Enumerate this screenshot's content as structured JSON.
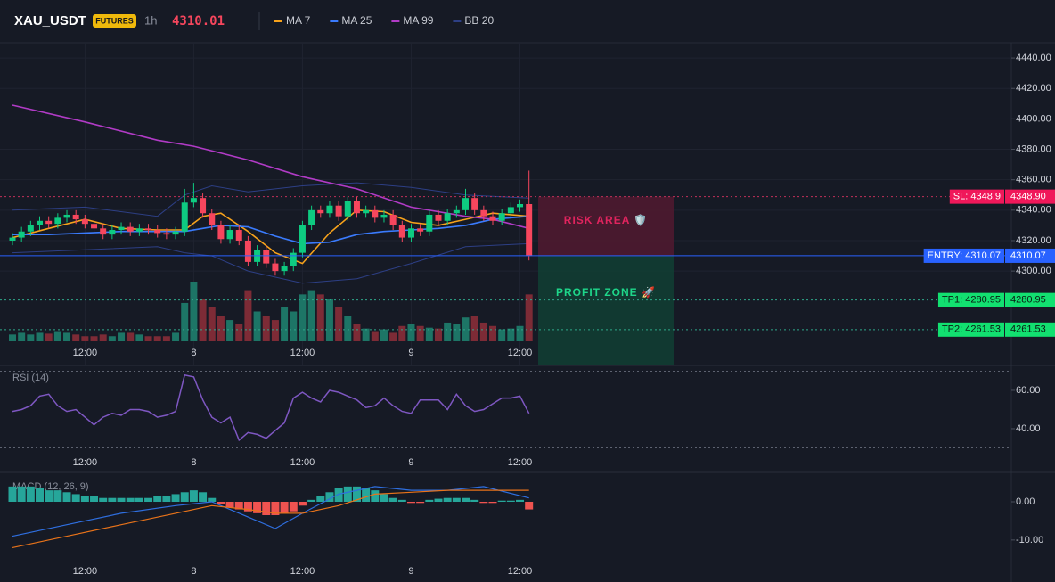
{
  "header": {
    "symbol": "XAU_USDT",
    "badge": "FUTURES",
    "interval": "1h",
    "price": 4310.01
  },
  "chart_data": [
    {
      "type": "candlestick",
      "categories": [
        null,
        null,
        null,
        null,
        null,
        null,
        null,
        null,
        "12:00",
        null,
        null,
        null,
        null,
        null,
        null,
        null,
        null,
        null,
        null,
        null,
        "8",
        null,
        null,
        null,
        null,
        null,
        null,
        null,
        null,
        null,
        null,
        null,
        "12:00",
        null,
        null,
        null,
        null,
        null,
        null,
        null,
        null,
        null,
        null,
        null,
        "9",
        null,
        null,
        null,
        null,
        null,
        null,
        null,
        null,
        null,
        null,
        null,
        "12:00",
        null
      ],
      "open": [
        4320,
        4322,
        4326,
        4330,
        4333,
        4331,
        4335,
        4337,
        4334,
        4331,
        4328,
        4324,
        4327,
        4329,
        4326,
        4328,
        4327,
        4325,
        4324,
        4326,
        4345,
        4348,
        4338,
        4330,
        4321,
        4327,
        4320,
        4306,
        4314,
        4305,
        4300,
        4303,
        4312,
        4330,
        4340,
        4338,
        4343,
        4336,
        4346,
        4338,
        4340,
        4335,
        4337,
        4330,
        4322,
        4328,
        4326,
        4337,
        4333,
        4338,
        4340,
        4348,
        4340,
        4336,
        4333,
        4338,
        4342,
        4344
      ],
      "high": [
        4325,
        4329,
        4333,
        4336,
        4336,
        4338,
        4340,
        4340,
        4337,
        4334,
        4331,
        4330,
        4332,
        4332,
        4331,
        4331,
        4330,
        4328,
        4329,
        4354,
        4358,
        4351,
        4341,
        4333,
        4330,
        4330,
        4323,
        4317,
        4317,
        4308,
        4306,
        4315,
        4333,
        4343,
        4343,
        4346,
        4346,
        4349,
        4349,
        4343,
        4343,
        4340,
        4340,
        4333,
        4331,
        4331,
        4340,
        4340,
        4341,
        4343,
        4354,
        4351,
        4343,
        4339,
        4341,
        4345,
        4347,
        4366
      ],
      "low": [
        4317,
        4319,
        4323,
        4327,
        4328,
        4328,
        4332,
        4331,
        4328,
        4325,
        4321,
        4321,
        4324,
        4323,
        4323,
        4324,
        4322,
        4321,
        4321,
        4323,
        4342,
        4335,
        4327,
        4318,
        4318,
        4317,
        4303,
        4303,
        4302,
        4297,
        4297,
        4300,
        4309,
        4327,
        4335,
        4335,
        4333,
        4333,
        4335,
        4335,
        4332,
        4332,
        4327,
        4319,
        4319,
        4323,
        4323,
        4330,
        4330,
        4335,
        4337,
        4337,
        4333,
        4330,
        4330,
        4335,
        4339,
        4307
      ],
      "close": [
        4322,
        4326,
        4330,
        4333,
        4331,
        4335,
        4337,
        4334,
        4331,
        4328,
        4324,
        4327,
        4329,
        4326,
        4328,
        4327,
        4325,
        4324,
        4326,
        4345,
        4348,
        4338,
        4330,
        4321,
        4327,
        4320,
        4306,
        4314,
        4305,
        4300,
        4303,
        4312,
        4330,
        4340,
        4338,
        4343,
        4336,
        4346,
        4338,
        4340,
        4335,
        4337,
        4330,
        4322,
        4328,
        4326,
        4337,
        4333,
        4338,
        4340,
        4348,
        4340,
        4336,
        4333,
        4338,
        4342,
        4344,
        4310
      ],
      "volume": [
        8,
        10,
        8,
        10,
        9,
        12,
        10,
        8,
        6,
        6,
        8,
        6,
        10,
        10,
        8,
        6,
        6,
        6,
        10,
        45,
        70,
        50,
        40,
        30,
        25,
        20,
        60,
        35,
        30,
        25,
        40,
        35,
        55,
        60,
        55,
        50,
        40,
        30,
        20,
        15,
        12,
        14,
        10,
        18,
        20,
        18,
        16,
        15,
        22,
        20,
        28,
        30,
        22,
        18,
        14,
        15,
        18,
        55
      ],
      "up_color": "#0ecb81",
      "down_color": "#f6465d",
      "volume_up_color": "#1d7566",
      "volume_down_color": "#7d2b36",
      "ylim": [
        4238,
        4450
      ],
      "yticks": [
        {
          "value": 4440,
          "label": "4440.00"
        },
        {
          "value": 4420,
          "label": "4420.00"
        },
        {
          "value": 4400,
          "label": "4400.00"
        },
        {
          "value": 4380,
          "label": "4380.00"
        },
        {
          "value": 4360,
          "label": "4360.00"
        },
        {
          "value": 4340,
          "label": "4340.00"
        },
        {
          "value": 4320,
          "label": "4320.00"
        },
        {
          "value": 4300,
          "label": "4300.00"
        }
      ],
      "grid": true,
      "series": [
        {
          "name": "MA 7",
          "color": "#f7a21b",
          "x": [
            0,
            4,
            8,
            12,
            16,
            19,
            21,
            23,
            26,
            29,
            32,
            35,
            38,
            41,
            44,
            47,
            50,
            53,
            57
          ],
          "values": [
            4322,
            4328,
            4334,
            4328,
            4327,
            4327,
            4336,
            4338,
            4326,
            4312,
            4305,
            4325,
            4340,
            4339,
            4332,
            4330,
            4334,
            4338,
            4336
          ]
        },
        {
          "name": "MA 25",
          "color": "#3a7bfd",
          "x": [
            0,
            4,
            8,
            12,
            16,
            19,
            21,
            23,
            26,
            29,
            32,
            35,
            38,
            41,
            44,
            47,
            50,
            53,
            57
          ],
          "values": [
            4324,
            4324,
            4325,
            4326,
            4326,
            4326,
            4328,
            4330,
            4329,
            4323,
            4318,
            4319,
            4324,
            4326,
            4327,
            4328,
            4330,
            4334,
            4336
          ]
        },
        {
          "name": "MA 99",
          "color": "#b13bc6",
          "x": [
            0,
            8,
            16,
            20,
            26,
            32,
            38,
            44,
            50,
            53,
            57
          ],
          "values": [
            4409,
            4398,
            4386,
            4382,
            4373,
            4362,
            4354,
            4342,
            4336,
            4334,
            4328
          ]
        },
        {
          "name": "BB 20",
          "color": "#2d3f85",
          "x": [
            0,
            8,
            16,
            19,
            22,
            26,
            32,
            38,
            44,
            50,
            57
          ],
          "upper": [
            4340,
            4342,
            4336,
            4350,
            4356,
            4352,
            4356,
            4358,
            4355,
            4350,
            4348
          ],
          "lower": [
            4312,
            4314,
            4316,
            4312,
            4310,
            4300,
            4292,
            4295,
            4305,
            4316,
            4318
          ]
        }
      ],
      "levels": [
        {
          "label": "SL: 4348.9",
          "value": 4348.9,
          "value_label": "4348.90",
          "color": "#f0185a",
          "line_color": "#c2305a",
          "text_color": "#ffffff",
          "style": "dotted"
        },
        {
          "label": "ENTRY: 4310.07",
          "value": 4310.07,
          "value_label": "4310.07",
          "color": "#2962ff",
          "line_color": "#2962ff",
          "text_color": "#ffffff",
          "style": "solid"
        },
        {
          "label": "TP1: 4280.95",
          "value": 4280.95,
          "value_label": "4280.95",
          "color": "#12e070",
          "line_color": "#2fa88a",
          "text_color": "#0b1a12",
          "style": "dotted"
        },
        {
          "label": "TP2: 4261.53",
          "value": 4261.53,
          "value_label": "4261.53",
          "color": "#12e070",
          "line_color": "#2fa88a",
          "text_color": "#0b1a12",
          "style": "dotted"
        }
      ],
      "zones": [
        {
          "label": "RISK AREA 🛡️",
          "from": 4310.07,
          "to": 4348.9,
          "color": "#4e1a30",
          "text_color": "#e0245e"
        },
        {
          "label": "PROFIT ZONE 🚀",
          "from": 4238,
          "to": 4310.07,
          "color": "#113d33",
          "text_color": "#1ed68a"
        }
      ]
    },
    {
      "type": "line",
      "title": "RSI (14)",
      "values": [
        49,
        50,
        52,
        57,
        58,
        52,
        49,
        50,
        46,
        42,
        46,
        48,
        47,
        50,
        50,
        49,
        46,
        47,
        49,
        68,
        67,
        55,
        46,
        43,
        46,
        34,
        38,
        37,
        35,
        39,
        43,
        56,
        59,
        56,
        54,
        60,
        59,
        57,
        55,
        51,
        52,
        56,
        52,
        49,
        48,
        55,
        55,
        55,
        50,
        58,
        52,
        49,
        50,
        53,
        56,
        56,
        57,
        48
      ],
      "color": "#7e57c2",
      "ylim": [
        26.5,
        73
      ],
      "yticks": [
        {
          "value": 60,
          "label": "60.00"
        },
        {
          "value": 40,
          "label": "40.00"
        }
      ],
      "levels": [
        70,
        30
      ]
    },
    {
      "type": "macd",
      "title": "MACD (12, 26, 9)",
      "histogram": [
        4,
        4,
        4,
        3.5,
        3,
        3,
        2.5,
        2,
        1.5,
        1.5,
        1,
        1,
        1,
        1,
        1,
        1,
        1.5,
        1.5,
        2,
        2.5,
        3,
        2.5,
        1,
        -0.5,
        -1.5,
        -2,
        -2.5,
        -3,
        -3.5,
        -3.5,
        -3,
        -2.5,
        -1,
        0.5,
        1.5,
        2.5,
        3.5,
        4,
        4,
        3.5,
        3,
        2,
        1,
        0.5,
        -0.3,
        -0.3,
        0.5,
        0.8,
        1,
        1,
        1,
        0.5,
        -0.3,
        -0.3,
        0.3,
        0.3,
        0.5,
        -2
      ],
      "up_color": "#26a69a",
      "down_color": "#ef5350",
      "lines": [
        {
          "color": "#2f6fe0",
          "x": [
            0,
            6,
            12,
            18,
            22,
            26,
            29,
            32,
            36,
            40,
            44,
            48,
            52,
            57
          ],
          "values": [
            -9,
            -6,
            -3,
            -1,
            0,
            -4,
            -7,
            -3,
            2,
            4,
            3,
            3,
            4,
            1
          ]
        },
        {
          "color": "#e8731a",
          "x": [
            0,
            6,
            12,
            18,
            22,
            26,
            29,
            32,
            36,
            40,
            44,
            48,
            52,
            57
          ],
          "values": [
            -12,
            -9,
            -6,
            -3,
            -1,
            -2,
            -3,
            -3,
            -1,
            2,
            2.5,
            3,
            3,
            3
          ]
        }
      ],
      "ylim": [
        -21,
        7
      ],
      "yticks": [
        {
          "value": 0,
          "label": "0.00"
        },
        {
          "value": -10,
          "label": "-10.00"
        }
      ]
    }
  ]
}
